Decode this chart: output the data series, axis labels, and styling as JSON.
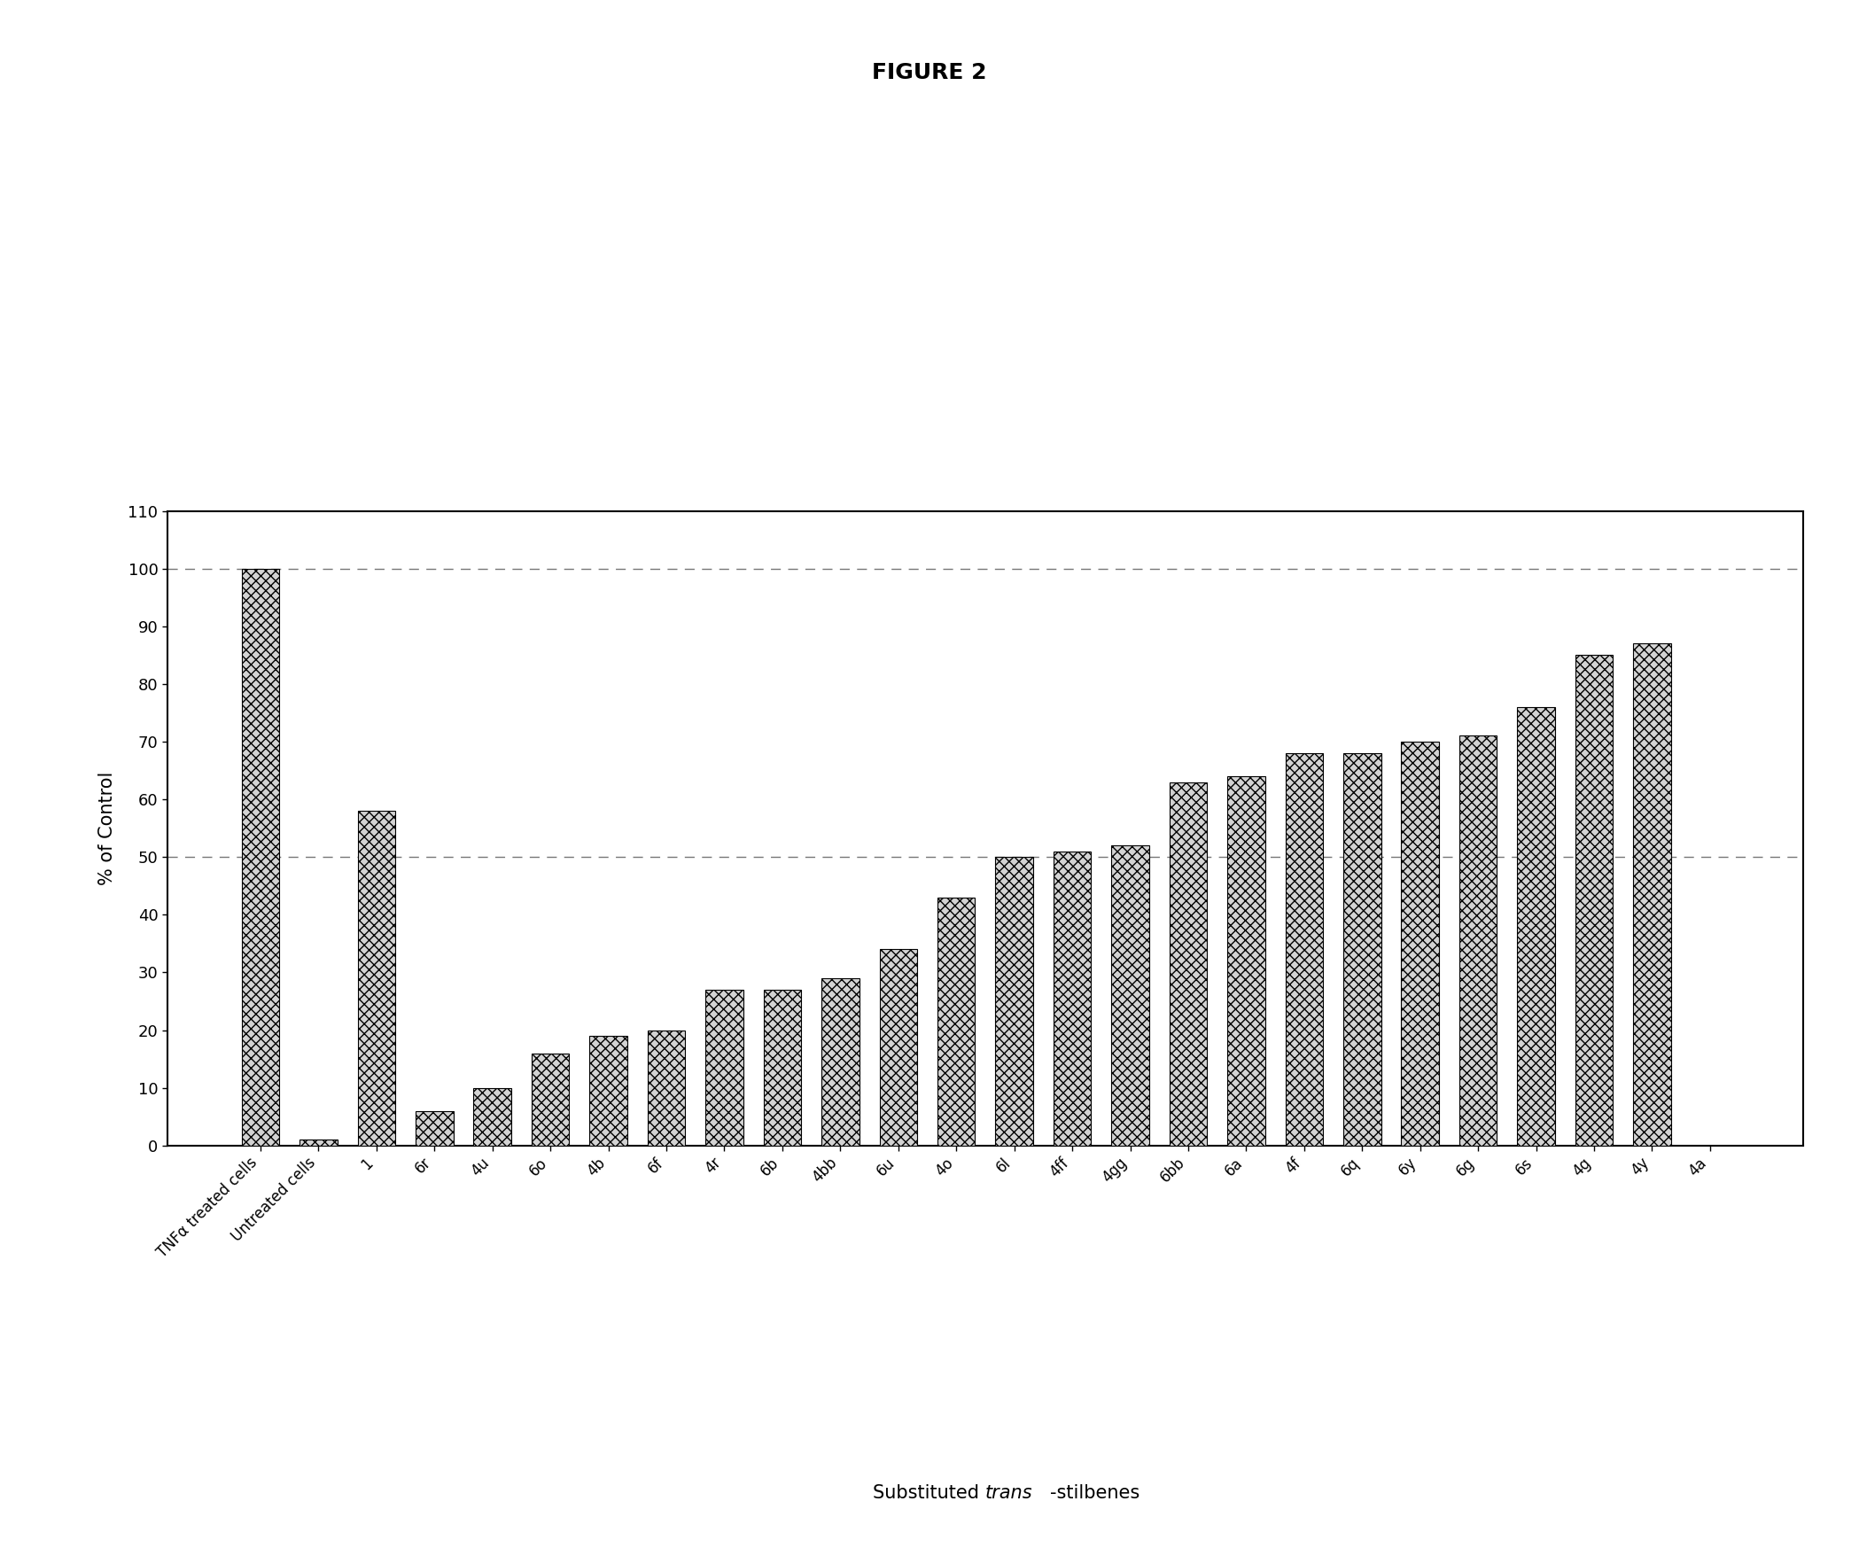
{
  "categories": [
    "TNFα treated cells",
    "Untreated cells",
    "1",
    "6r",
    "4u",
    "6o",
    "4b",
    "6f",
    "4r",
    "6b",
    "4bb",
    "6u",
    "4o",
    "6l",
    "4ff",
    "4gg",
    "6bb",
    "6a",
    "4f",
    "6q",
    "6y",
    "6g",
    "6s",
    "4g",
    "4y",
    "4a"
  ],
  "values": [
    100,
    1,
    58,
    6,
    10,
    16,
    19,
    20,
    27,
    27,
    29,
    34,
    43,
    50,
    51,
    52,
    63,
    64,
    68,
    68,
    70,
    71,
    76,
    85,
    87,
    0
  ],
  "title": "FIGURE 2",
  "ylabel": "% of Control",
  "xlabel_normal1": "Substituted ",
  "xlabel_italic": "trans",
  "xlabel_normal2": "-stilbenes",
  "ylim": [
    0,
    110
  ],
  "yticks": [
    0,
    10,
    20,
    30,
    40,
    50,
    60,
    70,
    80,
    90,
    100,
    110
  ],
  "hlines": [
    50,
    100
  ],
  "background": "#ffffff"
}
